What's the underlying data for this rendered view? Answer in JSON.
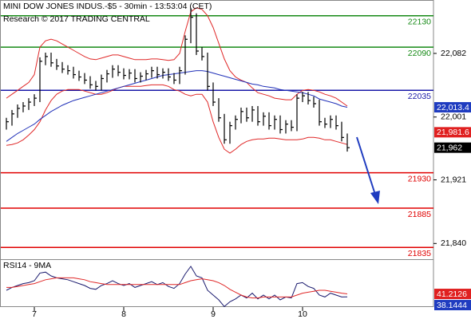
{
  "chart_data": {
    "type": "ohlc",
    "title": "MINI DOW JONES INDUS.-$5 - 30min - 13:53:04 (CET)",
    "subtitle": "Research © 2017 TRADING CENTRAL",
    "categories": [
      null,
      null,
      null,
      null,
      null,
      "7",
      null,
      null,
      null,
      null,
      null,
      null,
      null,
      null,
      null,
      null,
      null,
      null,
      null,
      null,
      null,
      "8",
      null,
      null,
      null,
      null,
      null,
      null,
      null,
      null,
      null,
      null,
      null,
      null,
      null,
      null,
      null,
      "9",
      null,
      null,
      null,
      null,
      null,
      null,
      null,
      null,
      null,
      null,
      null,
      null,
      null,
      null,
      null,
      "10",
      null,
      null,
      null,
      null,
      null,
      null,
      null,
      null
    ],
    "high": [
      22000,
      22010,
      22017,
      22020,
      22025,
      22030,
      22077,
      22083,
      22083,
      22075,
      22071,
      22067,
      22065,
      22060,
      22057,
      22053,
      22047,
      22055,
      22061,
      22067,
      22067,
      22063,
      22062,
      22062,
      22058,
      22061,
      22065,
      22065,
      22063,
      22063,
      22057,
      22065,
      22105,
      22140,
      22133,
      22090,
      22083,
      22045,
      22025,
      22005,
      21995,
      22003,
      22013,
      22013,
      22015,
      22015,
      22007,
      22007,
      22003,
      22003,
      21997,
      21997,
      22030,
      22033,
      22033,
      22027,
      22023,
      22000,
      22003,
      22003,
      21995,
      21980
    ],
    "low": [
      21985,
      21990,
      22000,
      22007,
      22010,
      22015,
      22020,
      22067,
      22065,
      22061,
      22057,
      22055,
      22050,
      22047,
      22043,
      22037,
      22035,
      22035,
      22045,
      22051,
      22053,
      22049,
      22049,
      22045,
      22045,
      22048,
      22051,
      22050,
      22050,
      22047,
      22043,
      22043,
      22055,
      22095,
      22080,
      22073,
      22035,
      22015,
      21995,
      21967,
      21967,
      21985,
      21993,
      21995,
      21995,
      21990,
      21990,
      21985,
      21985,
      21980,
      21980,
      21983,
      21983,
      22020,
      22017,
      22013,
      21990,
      21987,
      21987,
      21985,
      21970,
      21957
    ],
    "close": [
      21995,
      22005,
      22012,
      22015,
      22020,
      22025,
      22072,
      22078,
      22070,
      22066,
      22062,
      22060,
      22055,
      22052,
      22048,
      22042,
      22040,
      22050,
      22056,
      22062,
      22058,
      22054,
      22057,
      22050,
      22053,
      22056,
      22060,
      22055,
      22058,
      22052,
      22048,
      22060,
      22100,
      22128,
      22085,
      22078,
      22040,
      22020,
      22000,
      21972,
      21990,
      21998,
      22008,
      22000,
      22010,
      21995,
      22002,
      21990,
      21998,
      21985,
      21992,
      21988,
      22025,
      22028,
      22022,
      22018,
      21995,
      21992,
      21998,
      21990,
      21975,
      21962
    ],
    "color": "#000000",
    "overlays": [
      {
        "color": "#e02828",
        "values": [
          22025,
          22030,
          22035,
          22040,
          22045,
          22055,
          22090,
          22098,
          22100,
          22098,
          22094,
          22090,
          22086,
          22082,
          22078,
          22075,
          22074,
          22076,
          22078,
          22080,
          22080,
          22078,
          22076,
          22074,
          22074,
          22074,
          22075,
          22075,
          22074,
          22073,
          22074,
          22082,
          22110,
          22135,
          22140,
          22138,
          22130,
          22115,
          22095,
          22075,
          22060,
          22052,
          22048,
          22045,
          22038,
          22032,
          22030,
          22028,
          22025,
          22024,
          22023,
          22023,
          22030,
          22035,
          22036,
          22035,
          22033,
          22030,
          22028,
          22025,
          22020,
          22015
        ]
      },
      {
        "color": "#e02828",
        "values": [
          21965,
          21966,
          21968,
          21972,
          21978,
          21985,
          21995,
          22010,
          22022,
          22030,
          22034,
          22036,
          22036,
          22036,
          22034,
          22032,
          22030,
          22030,
          22032,
          22035,
          22038,
          22040,
          22040,
          22040,
          22040,
          22041,
          22042,
          22042,
          22042,
          22040,
          22036,
          22034,
          22030,
          22028,
          22030,
          22030,
          22020,
          21995,
          21975,
          21960,
          21955,
          21960,
          21966,
          21970,
          21972,
          21973,
          21973,
          21974,
          21974,
          21973,
          21972,
          21972,
          21972,
          21973,
          21975,
          21975,
          21974,
          21972,
          21972,
          21970,
          21968,
          21966
        ]
      },
      {
        "color": "#2030b8",
        "values": [
          21970,
          21975,
          21980,
          21984,
          21988,
          21992,
          21998,
          22003,
          22008,
          22012,
          22016,
          22019,
          22022,
          22024,
          22026,
          22028,
          22030,
          22032,
          22034,
          22036,
          22038,
          22040,
          22042,
          22044,
          22046,
          22048,
          22050,
          22052,
          22054,
          22055,
          22056,
          22057,
          22058,
          22059,
          22060,
          22060,
          22059,
          22057,
          22055,
          22053,
          22051,
          22049,
          22047,
          22045,
          22043,
          22042,
          22040,
          22039,
          22038,
          22036,
          22035,
          22034,
          22033,
          22032,
          22030,
          22028,
          22024,
          22022,
          22020,
          22018,
          22015,
          22013.4
        ]
      }
    ],
    "ylim": [
      21820,
      22150
    ],
    "yticks": [
      {
        "value": 21840,
        "label": "21,840"
      },
      {
        "value": 21921,
        "label": "21,921"
      },
      {
        "value": 22001,
        "label": "22,001"
      },
      {
        "value": 22082,
        "label": "22,082"
      }
    ],
    "levels": [
      {
        "value": 22130,
        "label": "22130",
        "color": "#168a16"
      },
      {
        "value": 22090,
        "label": "22090",
        "color": "#168a16"
      },
      {
        "value": 22035,
        "label": "22035",
        "color": "#1a1aa8"
      },
      {
        "value": 21930,
        "label": "21930",
        "color": "#e00000"
      },
      {
        "value": 21885,
        "label": "21885",
        "color": "#e00000"
      },
      {
        "value": 21835,
        "label": "21835",
        "color": "#e00000"
      }
    ],
    "markers": [
      {
        "value": 22013.4,
        "label": "22,013.4",
        "color": "#1f3cc0"
      },
      {
        "value": 21981.6,
        "label": "21,981.6",
        "color": "#e02020"
      },
      {
        "value": 21962,
        "label": "21,962",
        "color": "#000000"
      }
    ],
    "rsi": {
      "title": "RSI14 - 9MA",
      "ylim": [
        25,
        75
      ],
      "series": [
        {
          "color": "#1a1a6e",
          "values": [
            45,
            48,
            50,
            52,
            53,
            55,
            63,
            64,
            60,
            58,
            57,
            56,
            54,
            52,
            50,
            47,
            46,
            50,
            52,
            55,
            52,
            50,
            52,
            48,
            50,
            52,
            54,
            51,
            53,
            49,
            47,
            52,
            62,
            70,
            60,
            58,
            45,
            40,
            35,
            28,
            33,
            36,
            40,
            37,
            42,
            36,
            40,
            36,
            40,
            35,
            38,
            37,
            52,
            53,
            49,
            47,
            40,
            38,
            42,
            40,
            38,
            38.1444
          ]
        },
        {
          "color": "#e02828",
          "values": [
            48,
            48,
            49,
            50,
            51,
            52,
            54,
            56,
            57,
            58,
            58,
            58,
            58,
            57,
            56,
            54,
            53,
            52,
            51,
            51,
            51,
            51,
            51,
            51,
            51,
            51,
            51,
            51,
            51,
            51,
            51,
            51,
            53,
            55,
            56,
            57,
            56,
            55,
            53,
            50,
            46,
            43,
            40,
            38,
            37,
            37,
            38,
            38,
            38,
            38,
            38,
            38,
            40,
            42,
            43,
            44,
            45,
            45,
            44,
            43,
            42,
            41.2126
          ]
        }
      ],
      "markers": [
        {
          "value": 41.2126,
          "label": "41.2126",
          "color": "#e02020"
        },
        {
          "value": 38.1444,
          "label": "38.1444",
          "color": "#1f3cc0"
        }
      ]
    }
  }
}
